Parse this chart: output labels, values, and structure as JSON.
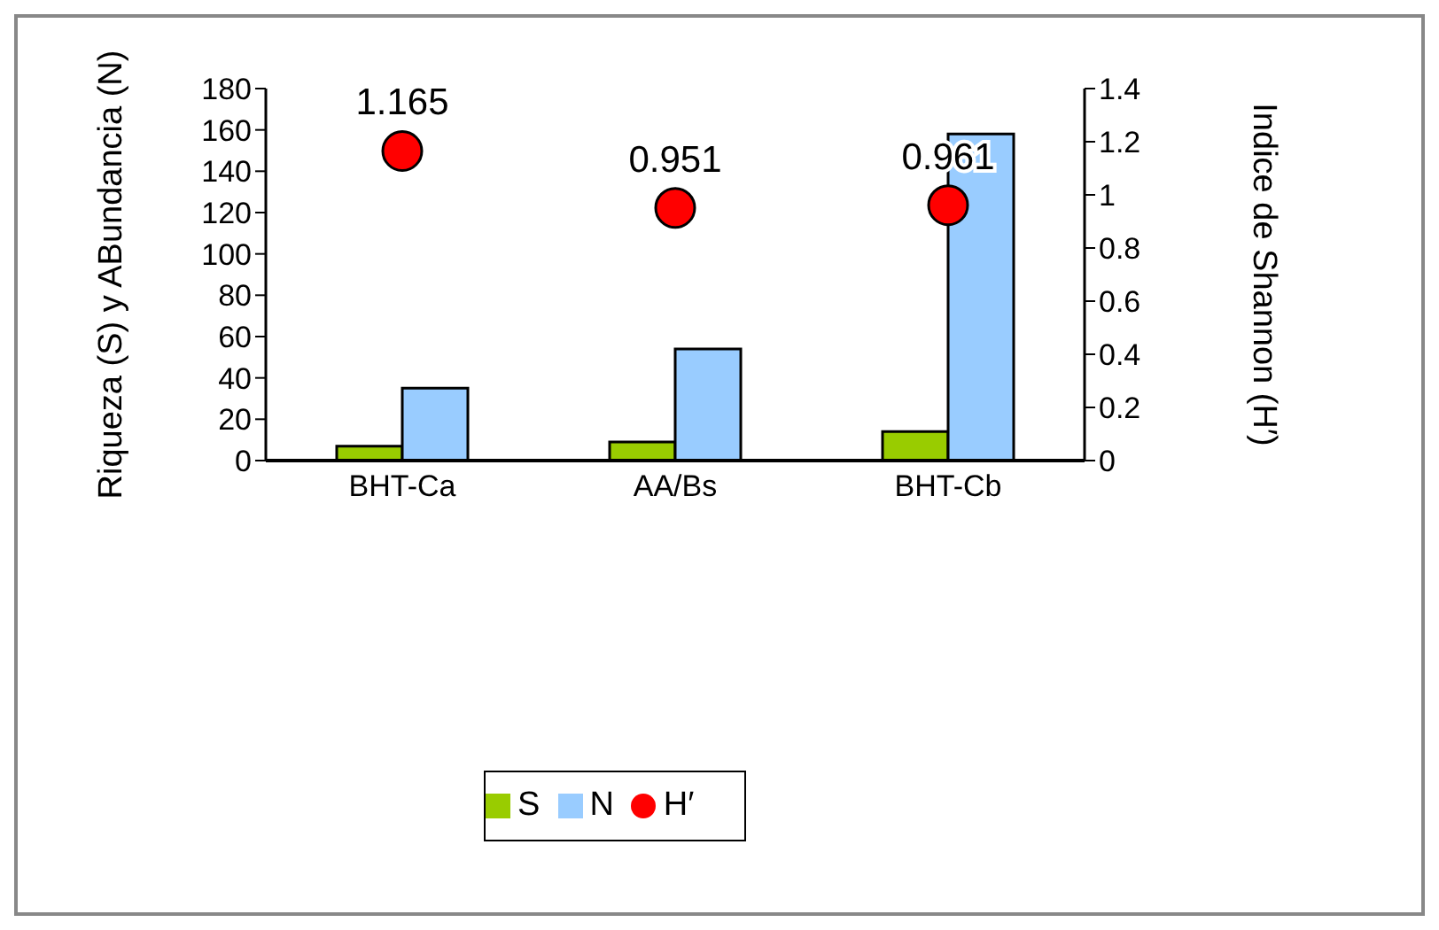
{
  "chart_data": {
    "type": "bar",
    "categories": [
      "BHT-Ca",
      "AA/Bs",
      "BHT-Cb"
    ],
    "ylabel": "Riqueza (S) y ABundancia (N)",
    "y2label": "Indice de Shannon (H′)",
    "series": [
      {
        "name": "S",
        "color": "#99cc00",
        "values": [
          7,
          9,
          14
        ]
      },
      {
        "name": "N",
        "color": "#99ccff",
        "values": [
          35,
          54,
          158
        ]
      },
      {
        "name": "H′",
        "type": "scatter",
        "axis": "y2",
        "color": "#ff0000",
        "values": [
          1.165,
          0.951,
          0.961
        ],
        "value_labels": [
          "1.165",
          "0.951",
          "0.961"
        ]
      }
    ],
    "ylim": [
      0,
      180
    ],
    "yticks": [
      0,
      20,
      40,
      60,
      80,
      100,
      120,
      140,
      160,
      180
    ],
    "y2lim": [
      0,
      1.4
    ],
    "y2ticks": [
      0,
      {
        "value": 0.2,
        "label": "0.2"
      },
      {
        "value": 0.4,
        "label": "0.4"
      },
      {
        "value": 0.6,
        "label": "0.6"
      },
      {
        "value": 0.8,
        "label": "0.8"
      },
      1,
      {
        "value": 1.2,
        "label": "1.2"
      },
      {
        "value": 1.4,
        "label": "1.4"
      }
    ],
    "grid": false,
    "legend": "bottom",
    "marker": "circle"
  }
}
